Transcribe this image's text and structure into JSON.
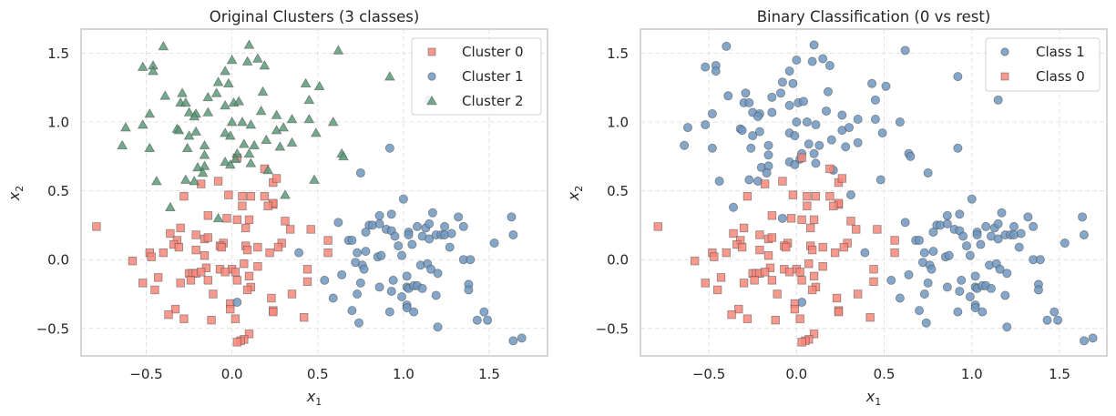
{
  "colors": {
    "cluster0": "#f7877a",
    "cluster1": "#6f96bf",
    "cluster2": "#5b9a78",
    "edge": "#444444"
  },
  "chart_data": [
    {
      "type": "scatter",
      "title": "Original Clusters (3 classes)",
      "xlabel": "x",
      "xlabel_sub": "1",
      "ylabel": "x",
      "ylabel_sub": "2",
      "xlim": [
        -0.88,
        1.84
      ],
      "ylim": [
        -0.7,
        1.675
      ],
      "xticks": [
        -0.5,
        0.0,
        0.5,
        1.0,
        1.5
      ],
      "xtick_labels": [
        "−0.5",
        "0.0",
        "0.5",
        "1.0",
        "1.5"
      ],
      "yticks": [
        -0.5,
        0.0,
        0.5,
        1.0,
        1.5
      ],
      "ytick_labels": [
        "−0.5",
        "0.0",
        "0.5",
        "1.0",
        "1.5"
      ],
      "grid": true,
      "legend_position": "top-right",
      "series": [
        {
          "name": "Cluster 0",
          "marker": "square",
          "color_key": "cluster0",
          "group": "c0"
        },
        {
          "name": "Cluster 1",
          "marker": "circle",
          "color_key": "cluster1",
          "group": "c1"
        },
        {
          "name": "Cluster 2",
          "marker": "triangle",
          "color_key": "cluster2",
          "group": "c2"
        }
      ]
    },
    {
      "type": "scatter",
      "title": "Binary Classification (0 vs rest)",
      "xlabel": "x",
      "xlabel_sub": "1",
      "ylabel": "x",
      "ylabel_sub": "2",
      "xlim": [
        -0.89,
        1.77
      ],
      "ylim": [
        -0.7,
        1.675
      ],
      "xticks": [
        -0.5,
        0.0,
        0.5,
        1.0,
        1.5
      ],
      "xtick_labels": [
        "−0.5",
        "0.0",
        "0.5",
        "1.0",
        "1.5"
      ],
      "yticks": [
        -0.5,
        0.0,
        0.5,
        1.0,
        1.5
      ],
      "ytick_labels": [
        "−0.5",
        "0.0",
        "0.5",
        "1.0",
        "1.5"
      ],
      "grid": true,
      "legend_position": "top-right",
      "series": [
        {
          "name": "Class 1",
          "marker": "circle",
          "color_key": "cluster1",
          "groups": [
            "c1",
            "c2"
          ]
        },
        {
          "name": "Class 0",
          "marker": "square",
          "color_key": "cluster0",
          "groups": [
            "c0"
          ]
        }
      ]
    }
  ],
  "points": {
    "c0": [
      [
        -0.18,
        0.55
      ],
      [
        0.24,
        0.56
      ],
      [
        -0.28,
        0.46
      ],
      [
        -0.02,
        0.47
      ],
      [
        0.11,
        0.46
      ],
      [
        0.19,
        0.46
      ],
      [
        0.24,
        0.4
      ],
      [
        0.06,
        0.39
      ],
      [
        -0.14,
        0.32
      ],
      [
        -0.03,
        0.3
      ],
      [
        0.03,
        0.29
      ],
      [
        0.1,
        0.29
      ],
      [
        0.08,
        0.23
      ],
      [
        0.31,
        0.28
      ],
      [
        0.34,
        0.22
      ],
      [
        -0.79,
        0.24
      ],
      [
        -0.3,
        0.23
      ],
      [
        -0.36,
        0.19
      ],
      [
        -0.21,
        0.18
      ],
      [
        -0.16,
        0.15
      ],
      [
        -0.14,
        0.16
      ],
      [
        -0.32,
        0.14
      ],
      [
        -0.34,
        0.11
      ],
      [
        -0.31,
        0.09
      ],
      [
        -0.05,
        0.12
      ],
      [
        -0.07,
        0.1
      ],
      [
        -0.06,
        0.09
      ],
      [
        0.08,
        0.1
      ],
      [
        0.09,
        0.07
      ],
      [
        0.15,
        0.09
      ],
      [
        0.29,
        0.12
      ],
      [
        0.27,
        0.09
      ],
      [
        0.22,
        0.05
      ],
      [
        -0.48,
        0.05
      ],
      [
        -0.47,
        0.02
      ],
      [
        -0.4,
        0.05
      ],
      [
        -0.21,
        0.07
      ],
      [
        -0.16,
        0.03
      ],
      [
        -0.58,
        -0.01
      ],
      [
        0.07,
        -0.03
      ],
      [
        0.15,
        -0.05
      ],
      [
        -0.15,
        -0.06
      ],
      [
        -0.07,
        -0.07
      ],
      [
        0.0,
        -0.07
      ],
      [
        0.02,
        -0.09
      ],
      [
        -0.04,
        -0.09
      ],
      [
        -0.25,
        -0.1
      ],
      [
        -0.23,
        -0.1
      ],
      [
        -0.21,
        -0.1
      ],
      [
        -0.18,
        -0.09
      ],
      [
        -0.24,
        -0.15
      ],
      [
        -0.14,
        -0.15
      ],
      [
        0.03,
        -0.15
      ],
      [
        0.1,
        -0.12
      ],
      [
        -0.3,
        -0.17
      ],
      [
        -0.43,
        -0.13
      ],
      [
        -0.52,
        -0.17
      ],
      [
        -0.45,
        -0.22
      ],
      [
        0.11,
        -0.2
      ],
      [
        0.09,
        -0.22
      ],
      [
        -0.11,
        -0.25
      ],
      [
        0.23,
        -0.28
      ],
      [
        0.35,
        -0.25
      ],
      [
        -0.01,
        -0.32
      ],
      [
        -0.01,
        -0.36
      ],
      [
        0.24,
        -0.37
      ],
      [
        0.24,
        -0.38
      ],
      [
        -0.33,
        -0.36
      ],
      [
        -0.37,
        -0.4
      ],
      [
        -0.28,
        -0.43
      ],
      [
        -0.12,
        -0.44
      ],
      [
        0.02,
        -0.43
      ],
      [
        0.42,
        -0.42
      ],
      [
        0.1,
        -0.54
      ],
      [
        0.07,
        -0.58
      ],
      [
        0.05,
        -0.59
      ],
      [
        0.03,
        -0.6
      ],
      [
        0.44,
        -0.07
      ],
      [
        0.44,
        -0.16
      ],
      [
        0.46,
        0.22
      ],
      [
        0.56,
        0.14
      ],
      [
        0.56,
        0.05
      ],
      [
        0.03,
        0.74
      ],
      [
        0.19,
        0.66
      ],
      [
        0.26,
        0.59
      ],
      [
        -0.08,
        0.57
      ],
      [
        0.06,
        0.46
      ],
      [
        0.24,
        0.41
      ],
      [
        0.21,
        0.39
      ]
    ],
    "c1": [
      [
        1.0,
        0.44
      ],
      [
        0.86,
        0.32
      ],
      [
        0.93,
        0.33
      ],
      [
        1.17,
        0.34
      ],
      [
        1.32,
        0.31
      ],
      [
        1.63,
        0.31
      ],
      [
        0.62,
        0.27
      ],
      [
        0.8,
        0.25
      ],
      [
        0.82,
        0.25
      ],
      [
        0.86,
        0.26
      ],
      [
        0.9,
        0.22
      ],
      [
        0.93,
        0.21
      ],
      [
        0.95,
        0.17
      ],
      [
        0.78,
        0.2
      ],
      [
        1.03,
        0.2
      ],
      [
        1.03,
        0.18
      ],
      [
        1.08,
        0.24
      ],
      [
        1.13,
        0.23
      ],
      [
        1.15,
        0.26
      ],
      [
        1.11,
        0.17
      ],
      [
        1.15,
        0.15
      ],
      [
        1.19,
        0.18
      ],
      [
        1.22,
        0.18
      ],
      [
        1.24,
        0.18
      ],
      [
        1.24,
        0.24
      ],
      [
        1.28,
        0.19
      ],
      [
        1.35,
        0.24
      ],
      [
        1.64,
        0.18
      ],
      [
        1.53,
        0.12
      ],
      [
        0.68,
        0.14
      ],
      [
        0.7,
        0.14
      ],
      [
        1.05,
        0.11
      ],
      [
        0.97,
        0.1
      ],
      [
        1.27,
        0.09
      ],
      [
        0.73,
        0.05
      ],
      [
        0.78,
        0.06
      ],
      [
        0.85,
        0.02
      ],
      [
        0.87,
        0.03
      ],
      [
        0.99,
        0.03
      ],
      [
        1.35,
        0.0
      ],
      [
        1.39,
        0.0
      ],
      [
        0.72,
        -0.02
      ],
      [
        0.76,
        -0.04
      ],
      [
        0.77,
        -0.07
      ],
      [
        1.1,
        -0.04
      ],
      [
        1.14,
        -0.03
      ],
      [
        1.16,
        -0.07
      ],
      [
        1.2,
        -0.1
      ],
      [
        0.64,
        -0.11
      ],
      [
        0.54,
        -0.15
      ],
      [
        0.75,
        -0.17
      ],
      [
        1.02,
        -0.12
      ],
      [
        0.94,
        -0.15
      ],
      [
        0.86,
        -0.2
      ],
      [
        0.93,
        -0.23
      ],
      [
        1.02,
        -0.2
      ],
      [
        1.03,
        -0.21
      ],
      [
        1.06,
        -0.19
      ],
      [
        1.08,
        -0.19
      ],
      [
        1.11,
        -0.21
      ],
      [
        1.38,
        -0.18
      ],
      [
        1.38,
        -0.22
      ],
      [
        0.73,
        -0.25
      ],
      [
        0.99,
        -0.27
      ],
      [
        1.19,
        -0.26
      ],
      [
        0.59,
        -0.28
      ],
      [
        1.02,
        -0.33
      ],
      [
        1.02,
        -0.35
      ],
      [
        0.7,
        -0.37
      ],
      [
        0.92,
        -0.38
      ],
      [
        1.06,
        -0.38
      ],
      [
        1.47,
        -0.38
      ],
      [
        0.74,
        -0.46
      ],
      [
        1.43,
        -0.44
      ],
      [
        1.49,
        -0.44
      ],
      [
        1.2,
        -0.49
      ],
      [
        1.64,
        -0.59
      ],
      [
        1.69,
        -0.57
      ],
      [
        0.92,
        0.81
      ],
      [
        0.75,
        0.63
      ],
      [
        0.39,
        0.05
      ],
      [
        0.03,
        -0.31
      ],
      [
        1.15,
        1.16
      ]
    ],
    "c2": [
      [
        -0.4,
        1.55
      ],
      [
        0.1,
        1.56
      ],
      [
        -0.52,
        1.4
      ],
      [
        -0.46,
        1.41
      ],
      [
        -0.46,
        1.37
      ],
      [
        0.0,
        1.45
      ],
      [
        0.09,
        1.44
      ],
      [
        0.15,
        1.46
      ],
      [
        0.19,
        1.41
      ],
      [
        -0.04,
        1.37
      ],
      [
        -0.08,
        1.29
      ],
      [
        -0.02,
        1.28
      ],
      [
        0.18,
        1.22
      ],
      [
        0.43,
        1.28
      ],
      [
        -0.39,
        1.19
      ],
      [
        -0.29,
        1.21
      ],
      [
        -0.3,
        1.14
      ],
      [
        -0.27,
        1.14
      ],
      [
        -0.14,
        1.18
      ],
      [
        -0.09,
        1.21
      ],
      [
        -0.04,
        1.12
      ],
      [
        0.01,
        1.14
      ],
      [
        0.04,
        1.15
      ],
      [
        0.45,
        1.16
      ],
      [
        -0.48,
        1.06
      ],
      [
        -0.25,
        1.07
      ],
      [
        -0.21,
        1.06
      ],
      [
        -0.22,
        1.04
      ],
      [
        -0.14,
        1.07
      ],
      [
        0.17,
        1.08
      ],
      [
        0.26,
        1.05
      ],
      [
        0.35,
        1.02
      ],
      [
        0.45,
        1.02
      ],
      [
        -0.62,
        0.96
      ],
      [
        -0.52,
        0.98
      ],
      [
        0.0,
        1.0
      ],
      [
        0.06,
        1.0
      ],
      [
        0.11,
        0.98
      ],
      [
        -0.32,
        0.95
      ],
      [
        -0.31,
        0.94
      ],
      [
        -0.21,
        0.93
      ],
      [
        -0.25,
        0.9
      ],
      [
        -0.04,
        0.92
      ],
      [
        -0.01,
        0.9
      ],
      [
        0.26,
        0.94
      ],
      [
        0.3,
        0.96
      ],
      [
        -0.64,
        0.83
      ],
      [
        -0.48,
        0.81
      ],
      [
        -0.26,
        0.81
      ],
      [
        -0.16,
        0.83
      ],
      [
        0.07,
        0.84
      ],
      [
        0.13,
        0.83
      ],
      [
        0.2,
        0.87
      ],
      [
        0.28,
        0.82
      ],
      [
        0.35,
        0.85
      ],
      [
        -0.16,
        0.76
      ],
      [
        0.03,
        0.77
      ],
      [
        0.1,
        0.77
      ],
      [
        -0.04,
        0.71
      ],
      [
        -0.01,
        0.69
      ],
      [
        0.11,
        0.7
      ],
      [
        0.02,
        0.73
      ],
      [
        -0.2,
        0.67
      ],
      [
        -0.16,
        0.68
      ],
      [
        -0.17,
        0.63
      ],
      [
        0.21,
        0.65
      ],
      [
        -0.44,
        0.57
      ],
      [
        -0.27,
        0.58
      ],
      [
        -0.22,
        0.57
      ],
      [
        0.62,
        1.52
      ],
      [
        0.92,
        1.33
      ],
      [
        0.51,
        1.26
      ],
      [
        0.59,
        1.0
      ],
      [
        0.49,
        0.92
      ],
      [
        0.64,
        0.77
      ],
      [
        0.65,
        0.75
      ],
      [
        0.48,
        0.58
      ],
      [
        0.31,
        0.47
      ],
      [
        -0.36,
        0.38
      ],
      [
        -0.08,
        0.3
      ]
    ]
  }
}
